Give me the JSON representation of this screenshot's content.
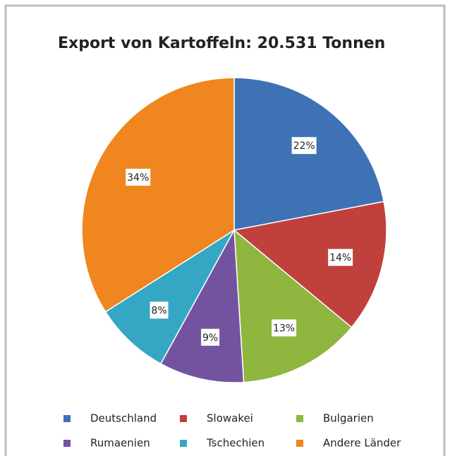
{
  "chart_data": {
    "type": "pie",
    "title": "Export von Kartoffeln:  20.531 Tonnen",
    "categories": [
      "Deutschland",
      "Slowakei",
      "Bulgarien",
      "Rumaenien",
      "Tschechien",
      "Andere Länder"
    ],
    "values": [
      22,
      14,
      13,
      9,
      8,
      34
    ],
    "value_labels": [
      "22%",
      "14%",
      "13%",
      "9%",
      "8%",
      "34%"
    ],
    "colors": [
      "#3f71b5",
      "#c0403d",
      "#8fb63f",
      "#7353a0",
      "#35a6c4",
      "#f0861f"
    ],
    "legend": "bottom"
  }
}
